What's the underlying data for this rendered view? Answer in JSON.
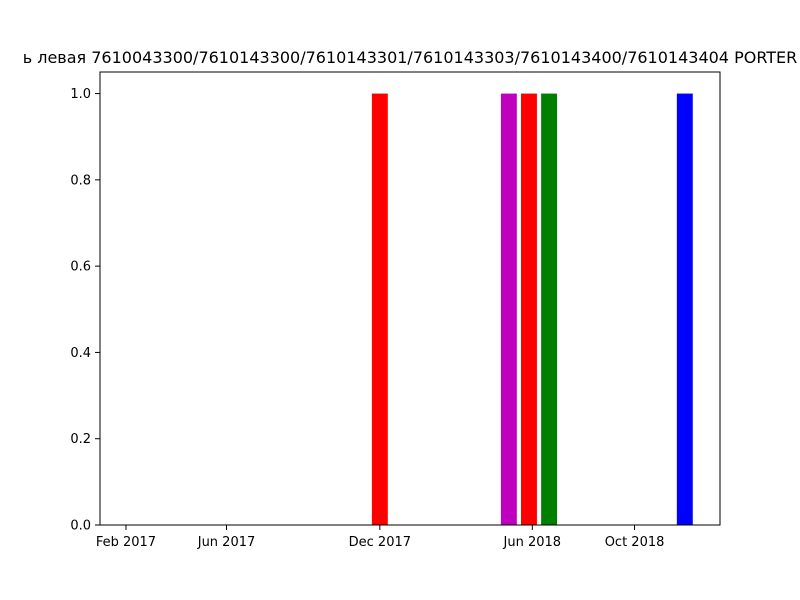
{
  "chart_data": {
    "type": "bar",
    "title": "ь левая 7610043300/7610143300/7610143301/7610143303/7610143400/7610143404 PORTER",
    "xlabel": "",
    "ylabel": "",
    "x_axis": "date",
    "xlim": [
      "2017-01-01",
      "2019-01-11"
    ],
    "ylim": [
      0,
      1.05
    ],
    "x_ticks": [
      {
        "date": "2017-02-01",
        "label": "Feb 2017"
      },
      {
        "date": "2017-06-01",
        "label": "Jun 2017"
      },
      {
        "date": "2017-12-01",
        "label": "Dec 2017"
      },
      {
        "date": "2018-06-01",
        "label": "Jun 2018"
      },
      {
        "date": "2018-10-01",
        "label": "Oct 2018"
      }
    ],
    "y_ticks": [
      "0.0",
      "0.2",
      "0.4",
      "0.6",
      "0.8",
      "1.0"
    ],
    "bar_width_days": 5,
    "bars": [
      {
        "date": "2017-12-01",
        "value": 1.0,
        "color": "#ff0000"
      },
      {
        "date": "2018-05-04",
        "value": 1.0,
        "color": "#bf00bf"
      },
      {
        "date": "2018-05-28",
        "value": 1.0,
        "color": "#ff0000"
      },
      {
        "date": "2018-06-21",
        "value": 1.0,
        "color": "#008000"
      },
      {
        "date": "2018-11-30",
        "value": 1.0,
        "color": "#0000ff"
      }
    ],
    "grid": false,
    "legend": "none"
  }
}
